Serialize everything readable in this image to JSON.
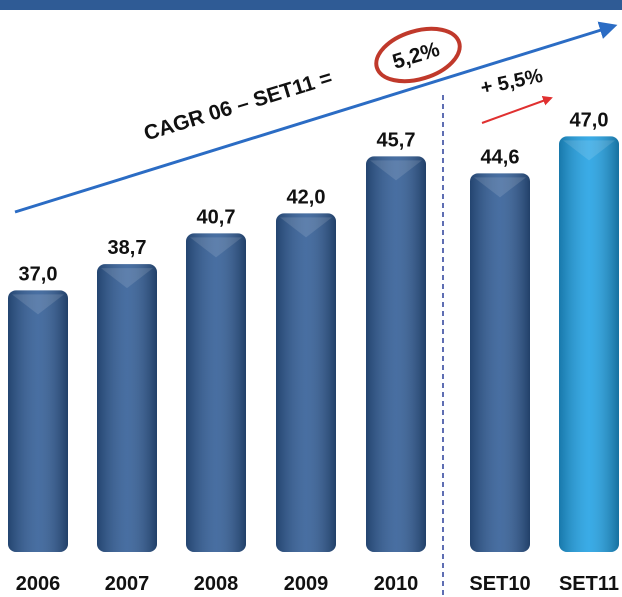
{
  "chart_data": {
    "type": "bar",
    "categories": [
      "2006",
      "2007",
      "2008",
      "2009",
      "2010",
      "SET10",
      "SET11"
    ],
    "values": [
      37.0,
      38.7,
      40.7,
      42.0,
      45.7,
      44.6,
      47.0
    ],
    "value_labels": [
      "37,0",
      "38,7",
      "40,7",
      "42,0",
      "45,7",
      "44,6",
      "47,0"
    ],
    "colors": [
      "#2f5b95",
      "#2f5b95",
      "#2f5b95",
      "#2f5b95",
      "#2f5b95",
      "#2f5b95",
      "#1fa0e3"
    ],
    "ylim": [
      20,
      48
    ],
    "annotations": [
      "CAGR 06 – SET11 =",
      "5,2%",
      "+ 5,5%"
    ]
  }
}
